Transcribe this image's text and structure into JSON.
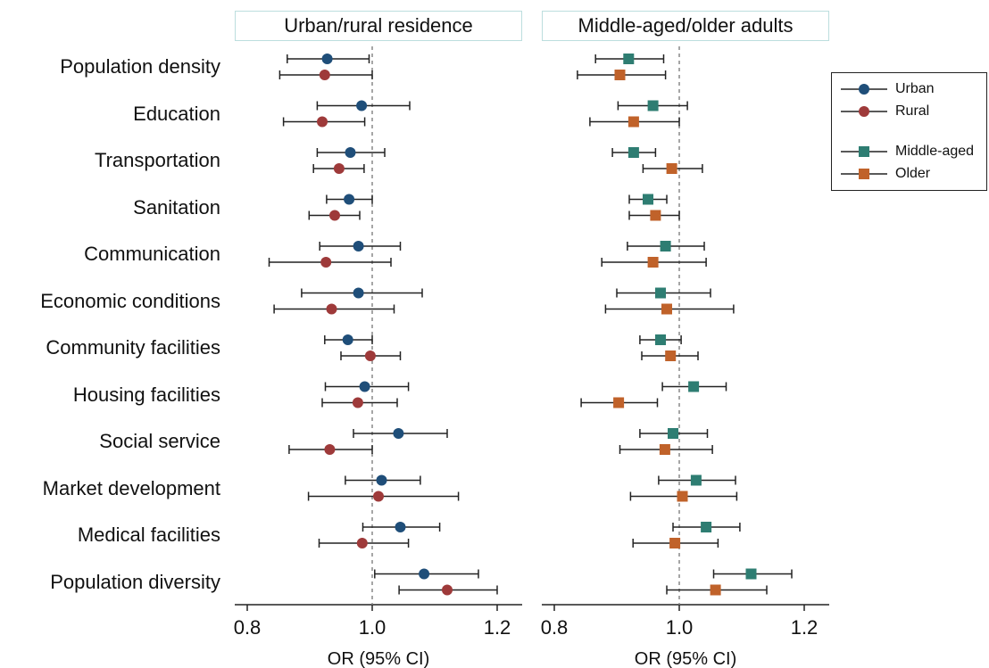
{
  "chart_data": [
    {
      "type": "forest",
      "title": "Urban/rural residence",
      "xlabel": "OR (95% CI)",
      "xlim": [
        0.78,
        1.24
      ],
      "xticks": [
        0.8,
        1.0,
        1.2
      ],
      "xtick_labels": [
        "0.8",
        "1.0",
        "1.2"
      ],
      "reference_line": 1.0,
      "categories": [
        "Population density",
        "Education",
        "Transportation",
        "Sanitation",
        "Communication",
        "Economic conditions",
        "Community facilities",
        "Housing facilities",
        "Social service",
        "Market development",
        "Medical facilities",
        "Population diversity"
      ],
      "series": [
        {
          "name": "Urban",
          "marker": "circle",
          "color": "#1f4e79",
          "or": [
            0.928,
            0.983,
            0.965,
            0.963,
            0.978,
            0.978,
            0.961,
            0.988,
            1.042,
            1.015,
            1.045,
            1.083
          ],
          "low": [
            0.864,
            0.912,
            0.912,
            0.927,
            0.916,
            0.887,
            0.924,
            0.925,
            0.97,
            0.957,
            0.985,
            1.004
          ],
          "high": [
            0.995,
            1.06,
            1.02,
            1.0,
            1.045,
            1.08,
            1.0,
            1.058,
            1.12,
            1.077,
            1.108,
            1.17
          ]
        },
        {
          "name": "Rural",
          "marker": "circle",
          "color": "#9e3a3a",
          "or": [
            0.924,
            0.92,
            0.947,
            0.94,
            0.926,
            0.935,
            0.997,
            0.977,
            0.932,
            1.01,
            0.984,
            1.12
          ],
          "low": [
            0.852,
            0.858,
            0.906,
            0.899,
            0.835,
            0.843,
            0.95,
            0.92,
            0.867,
            0.898,
            0.915,
            1.043
          ],
          "high": [
            1.0,
            0.988,
            0.987,
            0.98,
            1.03,
            1.035,
            1.045,
            1.04,
            1.0,
            1.138,
            1.058,
            1.2
          ]
        }
      ]
    },
    {
      "type": "forest",
      "title": "Middle-aged/older adults",
      "xlabel": "OR (95% CI)",
      "xlim": [
        0.78,
        1.24
      ],
      "xticks": [
        0.8,
        1.0,
        1.2
      ],
      "xtick_labels": [
        "0.8",
        "1.0",
        "1.2"
      ],
      "reference_line": 1.0,
      "categories": [
        "Population density",
        "Education",
        "Transportation",
        "Sanitation",
        "Communication",
        "Economic conditions",
        "Community facilities",
        "Housing facilities",
        "Social service",
        "Market development",
        "Medical facilities",
        "Population diversity"
      ],
      "series": [
        {
          "name": "Middle-aged",
          "marker": "square",
          "color": "#2e7d72",
          "or": [
            0.919,
            0.958,
            0.927,
            0.95,
            0.978,
            0.97,
            0.97,
            1.023,
            0.99,
            1.027,
            1.043,
            1.115
          ],
          "low": [
            0.866,
            0.902,
            0.893,
            0.92,
            0.917,
            0.9,
            0.937,
            0.973,
            0.937,
            0.967,
            0.99,
            1.055
          ],
          "high": [
            0.975,
            1.013,
            0.962,
            0.98,
            1.04,
            1.05,
            1.003,
            1.075,
            1.045,
            1.09,
            1.097,
            1.18
          ]
        },
        {
          "name": "Older",
          "marker": "square",
          "color": "#c0622a",
          "or": [
            0.905,
            0.927,
            0.988,
            0.962,
            0.958,
            0.98,
            0.986,
            0.903,
            0.977,
            1.005,
            0.993,
            1.058
          ],
          "low": [
            0.837,
            0.857,
            0.942,
            0.92,
            0.876,
            0.882,
            0.94,
            0.843,
            0.905,
            0.922,
            0.926,
            0.98
          ],
          "high": [
            0.978,
            1.0,
            1.037,
            1.0,
            1.043,
            1.087,
            1.03,
            0.965,
            1.053,
            1.092,
            1.062,
            1.14
          ]
        }
      ]
    }
  ],
  "legend": {
    "items": [
      {
        "label": "Urban",
        "marker": "circle",
        "color": "#1f4e79"
      },
      {
        "label": "Rural",
        "marker": "circle",
        "color": "#9e3a3a"
      },
      {
        "label": "Middle-aged",
        "marker": "square",
        "color": "#2e7d72"
      },
      {
        "label": "Older",
        "marker": "square",
        "color": "#c0622a"
      }
    ]
  }
}
